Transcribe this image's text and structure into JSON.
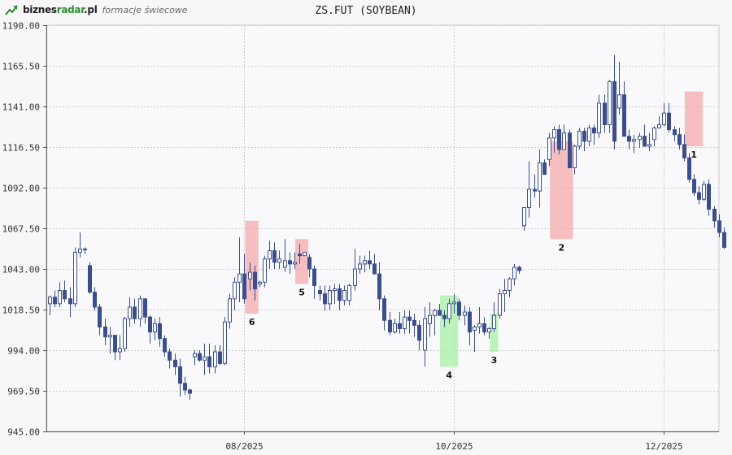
{
  "brand": {
    "name_prefix": "biznes",
    "name_accent": "radar",
    "name_suffix": ".pl",
    "subtitle": "formacje świecowe",
    "logo_icon": "trend-up-arrow-icon"
  },
  "chart_data": {
    "type": "candlestick",
    "title": "ZS.FUT (SOYBEAN)",
    "ylim": [
      945.0,
      1190.0
    ],
    "y_ticks": [
      "1190.00",
      "1165.50",
      "1141.00",
      "1116.50",
      "1092.00",
      "1067.50",
      "1043.00",
      "1018.50",
      "994.00",
      "969.50",
      "945.00"
    ],
    "x_ticks": [
      {
        "label": "08/2025",
        "index": 39
      },
      {
        "label": "10/2025",
        "index": 81
      },
      {
        "label": "12/2025",
        "index": 123
      }
    ],
    "grid": true,
    "colors": {
      "bullish": "#ffffff",
      "bearish": "#3b4e8c",
      "outline": "#3b4e8c",
      "grid": "#cccccc",
      "bearish_pattern": "#f6a9ad",
      "bullish_pattern": "#a6f0a6"
    },
    "candles": [
      [
        1022,
        1027,
        1015,
        1026
      ],
      [
        1026,
        1030,
        1020,
        1022
      ],
      [
        1022,
        1035,
        1020,
        1030
      ],
      [
        1030,
        1036,
        1023,
        1025
      ],
      [
        1025,
        1032,
        1014,
        1022
      ],
      [
        1022,
        1056,
        1020,
        1053
      ],
      [
        1053,
        1065,
        1050,
        1055
      ],
      [
        1055,
        1056,
        1052,
        1055
      ],
      [
        1045,
        1047,
        1028,
        1029
      ],
      [
        1029,
        1032,
        1018,
        1020
      ],
      [
        1020,
        1022,
        1003,
        1008
      ],
      [
        1008,
        1013,
        997,
        1002
      ],
      [
        1002,
        1008,
        992,
        1003
      ],
      [
        1003,
        1003,
        988,
        993
      ],
      [
        993,
        1003,
        988,
        995
      ],
      [
        995,
        1014,
        993,
        1013
      ],
      [
        1013,
        1026,
        1008,
        1020
      ],
      [
        1020,
        1025,
        1010,
        1013
      ],
      [
        1013,
        1027,
        1008,
        1025
      ],
      [
        1025,
        1025,
        1010,
        1014
      ],
      [
        1014,
        1015,
        998,
        1005
      ],
      [
        1005,
        1013,
        1000,
        1010
      ],
      [
        1010,
        1014,
        996,
        1001
      ],
      [
        1001,
        1003,
        990,
        993
      ],
      [
        993,
        995,
        983,
        988
      ],
      [
        988,
        992,
        979,
        984
      ],
      [
        984,
        989,
        966,
        974
      ],
      [
        974,
        978,
        967,
        970
      ],
      [
        970,
        971,
        964,
        968
      ],
      [
        990,
        994,
        985,
        992
      ],
      [
        992,
        994,
        987,
        988
      ],
      [
        988,
        998,
        979,
        990
      ],
      [
        990,
        998,
        980,
        984
      ],
      [
        984,
        997,
        980,
        993
      ],
      [
        993,
        997,
        985,
        986
      ],
      [
        986,
        1014,
        985,
        1011
      ],
      [
        1011,
        1028,
        1007,
        1025
      ],
      [
        1025,
        1038,
        1018,
        1035
      ],
      [
        1035,
        1062,
        1023,
        1040
      ],
      [
        1040,
        1052,
        1022,
        1025
      ],
      [
        1037,
        1047,
        1030,
        1041
      ],
      [
        1041,
        1045,
        1024,
        1031
      ],
      [
        1034,
        1036,
        1032,
        1035
      ],
      [
        1035,
        1051,
        1032,
        1049
      ],
      [
        1049,
        1060,
        1043,
        1054
      ],
      [
        1054,
        1059,
        1043,
        1047
      ],
      [
        1047,
        1054,
        1043,
        1049
      ],
      [
        1044,
        1061,
        1041,
        1048
      ],
      [
        1048,
        1053,
        1040,
        1046
      ],
      [
        1046,
        1053,
        1043,
        1047
      ],
      [
        1052,
        1058,
        1046,
        1051
      ],
      [
        1051,
        1053,
        1051,
        1053
      ],
      [
        1050,
        1052,
        1038,
        1043
      ],
      [
        1043,
        1045,
        1025,
        1033
      ],
      [
        1030,
        1033,
        1024,
        1028
      ],
      [
        1028,
        1033,
        1018,
        1022
      ],
      [
        1022,
        1033,
        1018,
        1030
      ],
      [
        1030,
        1034,
        1022,
        1031
      ],
      [
        1031,
        1034,
        1018,
        1024
      ],
      [
        1024,
        1033,
        1021,
        1030
      ],
      [
        1024,
        1034,
        1021,
        1033
      ],
      [
        1033,
        1055,
        1030,
        1043
      ],
      [
        1043,
        1051,
        1040,
        1046
      ],
      [
        1046,
        1051,
        1041,
        1048
      ],
      [
        1048,
        1054,
        1043,
        1046
      ],
      [
        1046,
        1052,
        1042,
        1040
      ],
      [
        1040,
        1047,
        1018,
        1025
      ],
      [
        1025,
        1027,
        1006,
        1012
      ],
      [
        1012,
        1017,
        1003,
        1005
      ],
      [
        1005,
        1013,
        1004,
        1010
      ],
      [
        1010,
        1017,
        1004,
        1007
      ],
      [
        1007,
        1018,
        1004,
        1014
      ],
      [
        1014,
        1018,
        1004,
        1012
      ],
      [
        1012,
        1016,
        1002,
        1009
      ],
      [
        1009,
        1012,
        994,
        1000
      ],
      [
        994,
        1020,
        984,
        1013
      ],
      [
        1010,
        1023,
        1002,
        1015
      ],
      [
        1015,
        1019,
        1003,
        1018
      ],
      [
        1018,
        1022,
        1015,
        1015
      ],
      [
        1015,
        1018,
        1008,
        1013
      ],
      [
        1013,
        1025,
        1010,
        1022
      ],
      [
        1022,
        1028,
        1016,
        1023
      ],
      [
        1023,
        1025,
        1012,
        1015
      ],
      [
        1015,
        1021,
        1009,
        1017
      ],
      [
        1017,
        1020,
        997,
        1005
      ],
      [
        1006,
        1009,
        993,
        1008
      ],
      [
        1008,
        1020,
        1004,
        1010
      ],
      [
        1010,
        1014,
        1003,
        1005
      ],
      [
        1005,
        1008,
        1001,
        1007
      ],
      [
        1007,
        1023,
        1005,
        1015
      ],
      [
        1015,
        1031,
        1013,
        1028
      ],
      [
        1028,
        1037,
        1017,
        1030
      ],
      [
        1030,
        1038,
        1026,
        1037
      ],
      [
        1037,
        1046,
        1033,
        1044
      ],
      [
        1044,
        1045,
        1040,
        1042
      ],
      [
        1069,
        1080,
        1066,
        1080
      ],
      [
        1080,
        1108,
        1074,
        1091
      ],
      [
        1091,
        1100,
        1086,
        1090
      ],
      [
        1090,
        1115,
        1080,
        1107
      ],
      [
        1107,
        1109,
        1100,
        1100
      ],
      [
        1109,
        1125,
        1105,
        1122
      ],
      [
        1122,
        1129,
        1113,
        1127
      ],
      [
        1127,
        1130,
        1112,
        1115
      ],
      [
        1115,
        1130,
        1115,
        1125
      ],
      [
        1125,
        1127,
        1104,
        1104
      ],
      [
        1104,
        1118,
        1100,
        1117
      ],
      [
        1117,
        1128,
        1115,
        1126
      ],
      [
        1126,
        1128,
        1114,
        1120
      ],
      [
        1120,
        1130,
        1117,
        1128
      ],
      [
        1128,
        1130,
        1118,
        1125
      ],
      [
        1125,
        1148,
        1122,
        1143
      ],
      [
        1143,
        1148,
        1125,
        1130
      ],
      [
        1130,
        1157,
        1125,
        1156
      ],
      [
        1156,
        1172,
        1115,
        1120
      ],
      [
        1140,
        1168,
        1136,
        1148
      ],
      [
        1148,
        1156,
        1123,
        1123
      ],
      [
        1123,
        1127,
        1115,
        1120
      ],
      [
        1120,
        1124,
        1113,
        1121
      ],
      [
        1121,
        1125,
        1116,
        1123
      ],
      [
        1123,
        1130,
        1117,
        1117
      ],
      [
        1117,
        1125,
        1114,
        1118
      ],
      [
        1121,
        1129,
        1117,
        1128
      ],
      [
        1128,
        1135,
        1128,
        1130
      ],
      [
        1130,
        1143,
        1129,
        1137
      ],
      [
        1137,
        1143,
        1125,
        1127
      ],
      [
        1127,
        1129,
        1120,
        1124
      ],
      [
        1124,
        1128,
        1115,
        1118
      ],
      [
        1118,
        1124,
        1108,
        1110
      ],
      [
        1110,
        1113,
        1095,
        1097
      ],
      [
        1097,
        1100,
        1087,
        1089
      ],
      [
        1089,
        1093,
        1082,
        1085
      ],
      [
        1085,
        1096,
        1084,
        1094
      ],
      [
        1094,
        1097,
        1075,
        1079
      ],
      [
        1079,
        1081,
        1068,
        1072
      ],
      [
        1072,
        1076,
        1062,
        1065
      ],
      [
        1065,
        1068,
        1055,
        1056
      ]
    ],
    "patterns": [
      {
        "label": "1",
        "signal": "bearish",
        "from": 128,
        "to": 130,
        "low": 1117,
        "high": 1150
      },
      {
        "label": "2",
        "signal": "bearish",
        "from": 101,
        "to": 104,
        "low": 1061,
        "high": 1120
      },
      {
        "label": "3",
        "signal": "bullish",
        "from": 89,
        "to": 89,
        "low": 993,
        "high": 1016
      },
      {
        "label": "4",
        "signal": "bullish",
        "from": 79,
        "to": 81,
        "low": 984,
        "high": 1027
      },
      {
        "label": "5",
        "signal": "bearish",
        "from": 50,
        "to": 51,
        "low": 1034,
        "high": 1061
      },
      {
        "label": "6",
        "signal": "bearish",
        "from": 40,
        "to": 41,
        "low": 1016,
        "high": 1072
      }
    ]
  }
}
